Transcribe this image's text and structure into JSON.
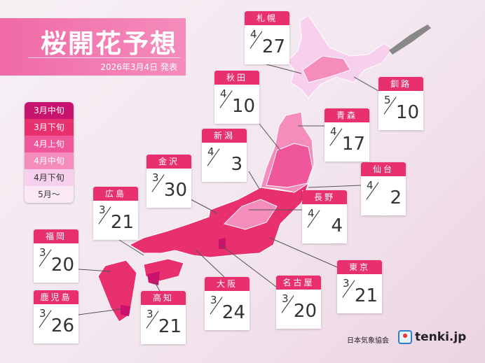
{
  "title": "桜開花予想",
  "announce_date": "2026年3月4日 発表",
  "legend": [
    {
      "label": "3月中旬",
      "color": "#c8146e",
      "text": "#fff"
    },
    {
      "label": "3月下旬",
      "color": "#e8306e",
      "text": "#fff"
    },
    {
      "label": "4月上旬",
      "color": "#f0579a",
      "text": "#fff"
    },
    {
      "label": "4月中旬",
      "color": "#f48cbc",
      "text": "#fff"
    },
    {
      "label": "4月下旬",
      "color": "#f7d0ee",
      "text": "#333"
    },
    {
      "label": "5月～",
      "color": "#fbeaf6",
      "text": "#333"
    }
  ],
  "cities": [
    {
      "name": "札幌",
      "month": "4",
      "day": "27"
    },
    {
      "name": "釧路",
      "month": "5",
      "day": "10"
    },
    {
      "name": "秋田",
      "month": "4",
      "day": "10"
    },
    {
      "name": "青森",
      "month": "4",
      "day": "17"
    },
    {
      "name": "新潟",
      "month": "4",
      "day": "3"
    },
    {
      "name": "金沢",
      "month": "3",
      "day": "30"
    },
    {
      "name": "仙台",
      "month": "4",
      "day": "2"
    },
    {
      "name": "広島",
      "month": "3",
      "day": "21"
    },
    {
      "name": "長野",
      "month": "4",
      "day": "4"
    },
    {
      "name": "福岡",
      "month": "3",
      "day": "20"
    },
    {
      "name": "東京",
      "month": "3",
      "day": "21"
    },
    {
      "name": "名古屋",
      "month": "3",
      "day": "20"
    },
    {
      "name": "大阪",
      "month": "3",
      "day": "24"
    },
    {
      "name": "鹿児島",
      "month": "3",
      "day": "26"
    },
    {
      "name": "高知",
      "month": "3",
      "day": "21"
    }
  ],
  "footer": {
    "org": "日本気象協会",
    "brand": "tenki.jp"
  }
}
